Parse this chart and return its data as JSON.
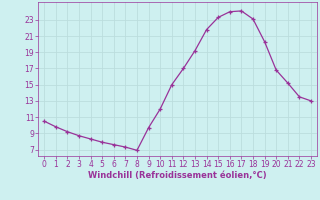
{
  "x": [
    0,
    1,
    2,
    3,
    4,
    5,
    6,
    7,
    8,
    9,
    10,
    11,
    12,
    13,
    14,
    15,
    16,
    17,
    18,
    19,
    20,
    21,
    22,
    23
  ],
  "y": [
    10.5,
    9.8,
    9.2,
    8.7,
    8.3,
    7.9,
    7.6,
    7.3,
    6.9,
    9.7,
    12.0,
    15.0,
    17.0,
    19.2,
    21.8,
    23.3,
    24.0,
    24.1,
    23.1,
    20.3,
    16.8,
    15.2,
    13.5,
    13.0
  ],
  "line_color": "#993399",
  "marker": "+",
  "bg_color": "#cef0f0",
  "grid_color": "#bbdddd",
  "xlabel": "Windchill (Refroidissement éolien,°C)",
  "ytick_labels": [
    "7",
    "9",
    "11",
    "13",
    "15",
    "17",
    "19",
    "21",
    "23"
  ],
  "ytick_vals": [
    7,
    9,
    11,
    13,
    15,
    17,
    19,
    21,
    23
  ],
  "xlim": [
    -0.5,
    23.5
  ],
  "ylim": [
    6.2,
    25.2
  ],
  "xlabel_color": "#993399",
  "tick_color": "#993399",
  "font_size": 5.5,
  "xlabel_font_size": 6.0,
  "line_width": 0.9,
  "marker_size": 3.0
}
